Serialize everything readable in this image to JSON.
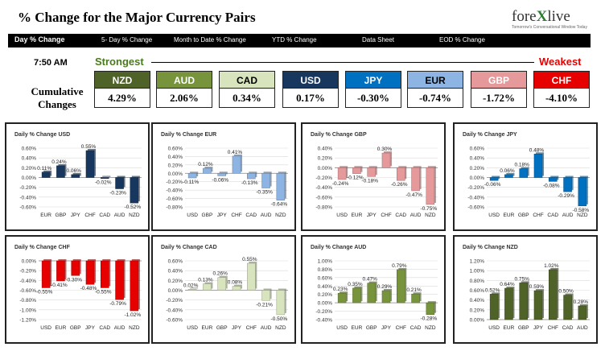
{
  "header": {
    "title": "% Change for the Major Currency Pairs",
    "logo_prefix": "fore",
    "logo_x": "X",
    "logo_suffix": "live",
    "logo_tagline": "Tomorrow's Conversational Window Today"
  },
  "nav": [
    "Day % Change",
    "5- Day % Change",
    "Month to Date % Change",
    "YTD % Change",
    "Data Sheet",
    "EOD % Change"
  ],
  "time": "7:50 AM",
  "strongest_label": "Strongest",
  "weakest_label": "Weakest",
  "cumulative_label_1": "Cumulative",
  "cumulative_label_2": "Changes",
  "currencies": [
    {
      "code": "NZD",
      "value": "4.29%",
      "bg": "#4f6228",
      "fg": "#ffffff"
    },
    {
      "code": "AUD",
      "value": "2.06%",
      "bg": "#77933c",
      "fg": "#ffffff"
    },
    {
      "code": "CAD",
      "value": "0.34%",
      "bg": "#d7e4bd",
      "fg": "#000000"
    },
    {
      "code": "USD",
      "value": "0.17%",
      "bg": "#17375e",
      "fg": "#ffffff"
    },
    {
      "code": "JPY",
      "value": "-0.30%",
      "bg": "#0070c0",
      "fg": "#ffffff"
    },
    {
      "code": "EUR",
      "value": "-0.74%",
      "bg": "#8db4e2",
      "fg": "#000000"
    },
    {
      "code": "GBP",
      "value": "-1.72%",
      "bg": "#e6999a",
      "fg": "#ffffff"
    },
    {
      "code": "CHF",
      "value": "-4.10%",
      "bg": "#e60000",
      "fg": "#ffffff"
    }
  ],
  "chart_data": [
    {
      "type": "bar",
      "title": "Daily % Change USD",
      "categories": [
        "EUR",
        "GBP",
        "JPY",
        "CHF",
        "CAD",
        "AUD",
        "NZD"
      ],
      "values": [
        0.11,
        0.24,
        0.06,
        0.55,
        -0.02,
        -0.23,
        -0.52
      ],
      "labels": [
        "0.11%",
        "0.24%",
        "0.06%",
        "0.55%",
        "-0.02%",
        "-0.23%",
        "-0.52%"
      ],
      "ticks": [
        "0.60%",
        "0.40%",
        "0.20%",
        "0.00%",
        "-0.20%",
        "-0.40%",
        "-0.60%"
      ],
      "ylim": [
        -0.6,
        0.6
      ],
      "color": "#17375e"
    },
    {
      "type": "bar",
      "title": "Daily % Change EUR",
      "categories": [
        "USD",
        "GBP",
        "JPY",
        "CHF",
        "CAD",
        "AUD",
        "NZD"
      ],
      "values": [
        -0.11,
        0.12,
        -0.06,
        0.41,
        -0.13,
        -0.35,
        -0.64
      ],
      "labels": [
        "-0.11%",
        "0.12%",
        "-0.06%",
        "0.41%",
        "-0.13%",
        "-0.35%",
        "-0.64%"
      ],
      "ticks": [
        "0.60%",
        "0.40%",
        "0.20%",
        "0.00%",
        "-0.20%",
        "-0.40%",
        "-0.60%",
        "-0.80%"
      ],
      "ylim": [
        -0.8,
        0.6
      ],
      "color": "#8db4e2"
    },
    {
      "type": "bar",
      "title": "Daily % Change GBP",
      "categories": [
        "USD",
        "EUR",
        "JPY",
        "CHF",
        "CAD",
        "AUD",
        "NZD"
      ],
      "values": [
        -0.24,
        -0.12,
        -0.18,
        0.3,
        -0.26,
        -0.47,
        -0.75
      ],
      "labels": [
        "-0.24%",
        "-0.12%",
        "-0.18%",
        "0.30%",
        "-0.26%",
        "-0.47%",
        "-0.75%"
      ],
      "ticks": [
        "0.40%",
        "0.20%",
        "0.00%",
        "-0.20%",
        "-0.40%",
        "-0.60%",
        "-0.80%"
      ],
      "ylim": [
        -0.8,
        0.4
      ],
      "color": "#e6999a"
    },
    {
      "type": "bar",
      "title": "Daily % Change JPY",
      "categories": [
        "USD",
        "EUR",
        "GBP",
        "CHF",
        "CAD",
        "AUD",
        "NZD"
      ],
      "values": [
        -0.06,
        0.06,
        0.18,
        0.48,
        -0.08,
        -0.29,
        -0.58
      ],
      "labels": [
        "-0.06%",
        "0.06%",
        "0.18%",
        "0.48%",
        "-0.08%",
        "-0.29%",
        "-0.58%"
      ],
      "ticks": [
        "0.60%",
        "0.40%",
        "0.20%",
        "0.00%",
        "-0.20%",
        "-0.40%",
        "-0.60%"
      ],
      "ylim": [
        -0.6,
        0.6
      ],
      "color": "#0070c0"
    },
    {
      "type": "bar",
      "title": "Daily % Change CHF",
      "categories": [
        "USD",
        "EUR",
        "GBP",
        "JPY",
        "CAD",
        "AUD",
        "NZD"
      ],
      "values": [
        -0.55,
        -0.41,
        -0.3,
        -0.48,
        -0.55,
        -0.79,
        -1.02
      ],
      "labels": [
        "-0.55%",
        "-0.41%",
        "-0.30%",
        "-0.48%",
        "-0.55%",
        "-0.79%",
        "-1.02%"
      ],
      "ticks": [
        "0.00%",
        "-0.20%",
        "-0.40%",
        "-0.60%",
        "-0.80%",
        "-1.00%",
        "-1.20%"
      ],
      "ylim": [
        -1.2,
        0
      ],
      "color": "#e60000"
    },
    {
      "type": "bar",
      "title": "Daily % Change CAD",
      "categories": [
        "USD",
        "EUR",
        "GBP",
        "JPY",
        "CHF",
        "AUD",
        "NZD"
      ],
      "values": [
        0.02,
        0.13,
        0.26,
        0.08,
        0.55,
        -0.21,
        -0.5
      ],
      "labels": [
        "0.02%",
        "0.13%",
        "0.26%",
        "0.08%",
        "0.55%",
        "-0.21%",
        "-0.50%"
      ],
      "ticks": [
        "0.60%",
        "0.40%",
        "0.20%",
        "0.00%",
        "-0.20%",
        "-0.40%",
        "-0.60%"
      ],
      "ylim": [
        -0.6,
        0.6
      ],
      "color": "#d7e4bd"
    },
    {
      "type": "bar",
      "title": "Daily % Change AUD",
      "categories": [
        "USD",
        "EUR",
        "GBP",
        "JPY",
        "CHF",
        "CAD",
        "NZD"
      ],
      "values": [
        0.23,
        0.35,
        0.47,
        0.29,
        0.79,
        0.21,
        -0.28
      ],
      "labels": [
        "0.23%",
        "0.35%",
        "0.47%",
        "0.29%",
        "0.79%",
        "0.21%",
        "-0.28%"
      ],
      "ticks": [
        "1.00%",
        "0.80%",
        "0.60%",
        "0.40%",
        "0.20%",
        "0.00%",
        "-0.20%",
        "-0.40%"
      ],
      "ylim": [
        -0.4,
        1.0
      ],
      "color": "#77933c"
    },
    {
      "type": "bar",
      "title": "Daily % Change NZD",
      "categories": [
        "USD",
        "EUR",
        "GBP",
        "JPY",
        "CHF",
        "CAD",
        "AUD"
      ],
      "values": [
        0.52,
        0.64,
        0.75,
        0.59,
        1.02,
        0.5,
        0.28
      ],
      "labels": [
        "0.52%",
        "0.64%",
        "0.75%",
        "0.59%",
        "1.02%",
        "0.50%",
        "0.28%"
      ],
      "ticks": [
        "1.20%",
        "1.00%",
        "0.80%",
        "0.60%",
        "0.40%",
        "0.20%",
        "0.00%"
      ],
      "ylim": [
        0,
        1.2
      ],
      "color": "#4f6228"
    }
  ]
}
